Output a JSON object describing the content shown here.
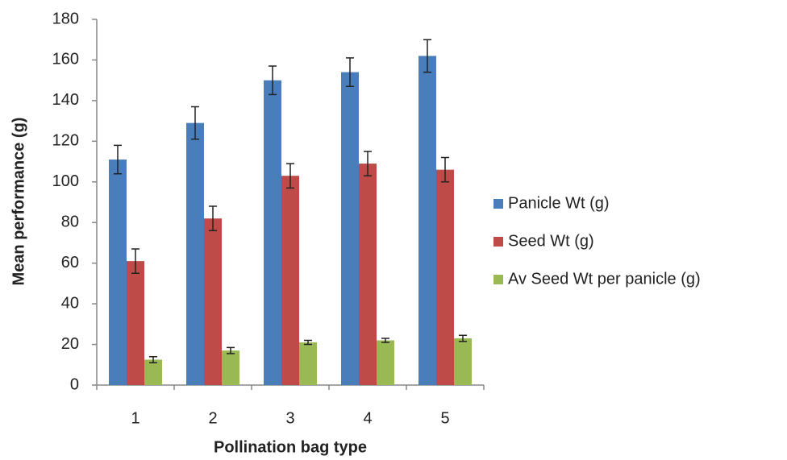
{
  "chart_data": {
    "type": "bar",
    "x_label": "Pollination bag type",
    "y_label": "Mean performance (g)",
    "categories": [
      "1",
      "2",
      "3",
      "4",
      "5"
    ],
    "series": [
      {
        "name": "Panicle Wt (g)",
        "color": "#4a7ebb",
        "values": [
          111,
          129,
          150,
          154,
          162
        ],
        "errors": [
          7,
          8,
          7,
          7,
          8
        ]
      },
      {
        "name": "Seed Wt (g)",
        "color": "#be4b48",
        "values": [
          61,
          82,
          103,
          109,
          106
        ],
        "errors": [
          6,
          6,
          6,
          6,
          6
        ]
      },
      {
        "name": "Av Seed Wt per panicle (g)",
        "color": "#98b954",
        "values": [
          12.5,
          17,
          21,
          22,
          23
        ],
        "errors": [
          1.5,
          1.5,
          1,
          1,
          1.5
        ]
      }
    ],
    "ylim": [
      0,
      180
    ],
    "yticks": [
      0,
      20,
      40,
      60,
      80,
      100,
      120,
      140,
      160,
      180
    ],
    "grid": false,
    "legend": "right"
  }
}
